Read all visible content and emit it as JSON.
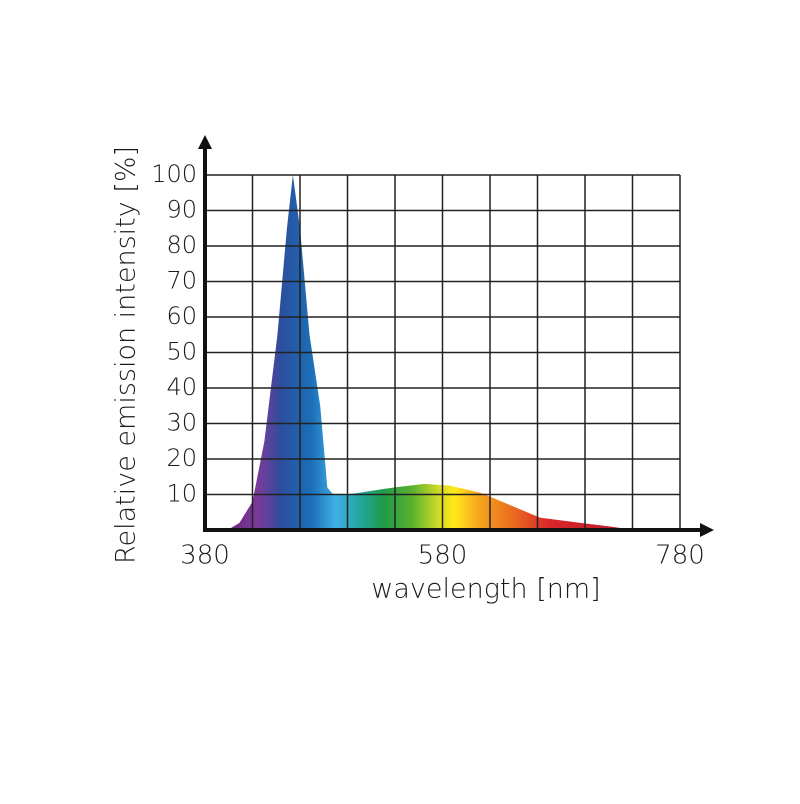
{
  "chart_data": {
    "type": "area",
    "xlabel": "wavelength [nm]",
    "ylabel": "Relative emission intensity [%]",
    "x": [
      399,
      409,
      420,
      430,
      441,
      449,
      454,
      460,
      468,
      477,
      483,
      488,
      500,
      519,
      540,
      565,
      586,
      612,
      637,
      662,
      696,
      721,
      742
    ],
    "values": [
      0,
      2,
      8,
      25,
      55,
      85,
      100,
      85,
      55,
      35,
      12,
      10,
      10,
      11,
      12,
      13,
      12.5,
      10.5,
      7,
      3.5,
      2,
      1,
      0
    ],
    "xlim": [
      380,
      780
    ],
    "xticks": [
      380,
      580,
      780
    ],
    "x_gridlines": [
      380,
      420,
      460,
      500,
      540,
      580,
      620,
      660,
      700,
      740,
      780
    ],
    "ylim": [
      0,
      100
    ],
    "yticks": [
      10,
      20,
      30,
      40,
      50,
      60,
      70,
      80,
      90,
      100
    ],
    "grid": true,
    "spectrum": [
      {
        "x": 400,
        "color": "#6a2a7e"
      },
      {
        "x": 425,
        "color": "#7a3a9a"
      },
      {
        "x": 445,
        "color": "#2a4f9e"
      },
      {
        "x": 470,
        "color": "#1c6fb8"
      },
      {
        "x": 490,
        "color": "#3fb0e6"
      },
      {
        "x": 510,
        "color": "#23a7a0"
      },
      {
        "x": 530,
        "color": "#1f9a4a"
      },
      {
        "x": 555,
        "color": "#5cb22e"
      },
      {
        "x": 575,
        "color": "#c8d82a"
      },
      {
        "x": 590,
        "color": "#ffe81a"
      },
      {
        "x": 610,
        "color": "#f6a71c"
      },
      {
        "x": 640,
        "color": "#ea6a1f"
      },
      {
        "x": 670,
        "color": "#d8262a"
      },
      {
        "x": 740,
        "color": "#c0192a"
      }
    ]
  }
}
